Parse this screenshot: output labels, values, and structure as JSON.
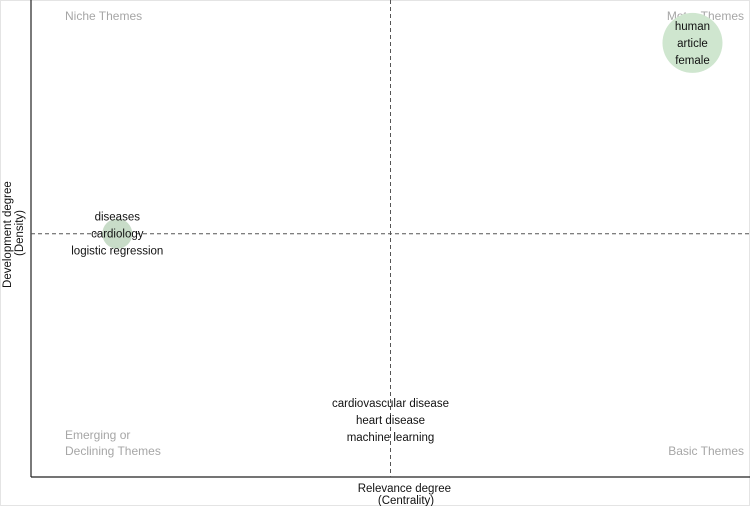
{
  "chart_data": {
    "type": "scatter",
    "title": "",
    "xlabel": [
      "Relevance degree",
      "(Centrality)"
    ],
    "ylabel": [
      "Development degree",
      "(Density)"
    ],
    "quadrants": {
      "top_left": [
        "Niche Themes"
      ],
      "top_right": [
        "Motor Themes"
      ],
      "bottom_left": [
        "Emerging or",
        "Declining Themes"
      ],
      "bottom_right": [
        "Basic Themes"
      ]
    },
    "clusters": [
      {
        "labels": [
          "human",
          "article",
          "female"
        ],
        "x": 0.92,
        "y": 0.91,
        "size": 1.0,
        "color": "#cfe6cf"
      },
      {
        "labels": [
          "diseases",
          "cardiology",
          "logistic regression"
        ],
        "x": 0.12,
        "y": 0.51,
        "size": 0.25,
        "color": "#c8dcc8"
      },
      {
        "labels": [
          "cardiovascular disease",
          "heart disease",
          "machine learning"
        ],
        "x": 0.5,
        "y": 0.12,
        "size": 0.0,
        "color": "#c8dcc8"
      }
    ],
    "xlim": [
      0,
      1
    ],
    "ylim": [
      0,
      1
    ],
    "x_ref_line": 0.5,
    "y_ref_line": 0.51,
    "grid": false,
    "legend": "none"
  }
}
